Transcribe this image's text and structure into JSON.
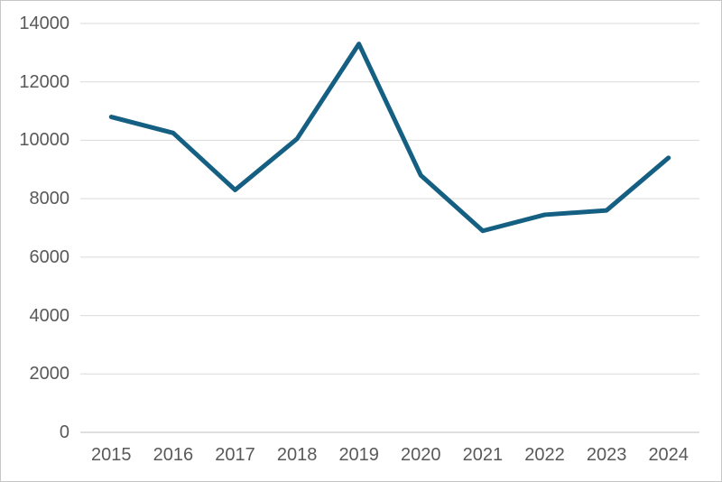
{
  "chart_data": {
    "type": "line",
    "title": "",
    "xlabel": "",
    "ylabel": "",
    "categories": [
      "2015",
      "2016",
      "2017",
      "2018",
      "2019",
      "2020",
      "2021",
      "2022",
      "2023",
      "2024"
    ],
    "series": [
      {
        "name": "",
        "values": [
          10800,
          10250,
          8300,
          10050,
          13300,
          8800,
          6900,
          7450,
          7600,
          9400
        ]
      }
    ],
    "ylim": [
      0,
      14000
    ],
    "ytick_step": 2000,
    "ytick_labels": [
      "0",
      "2000",
      "4000",
      "6000",
      "8000",
      "10000",
      "12000",
      "14000"
    ],
    "grid": true,
    "legend": false,
    "colors": {
      "line": "#156082",
      "gridline": "#d9d9d9",
      "axis_line": "#bfbfbf",
      "tick_text": "#595959",
      "background": "#ffffff",
      "frame_border": "#c6c6c6"
    },
    "line_width": 5
  }
}
